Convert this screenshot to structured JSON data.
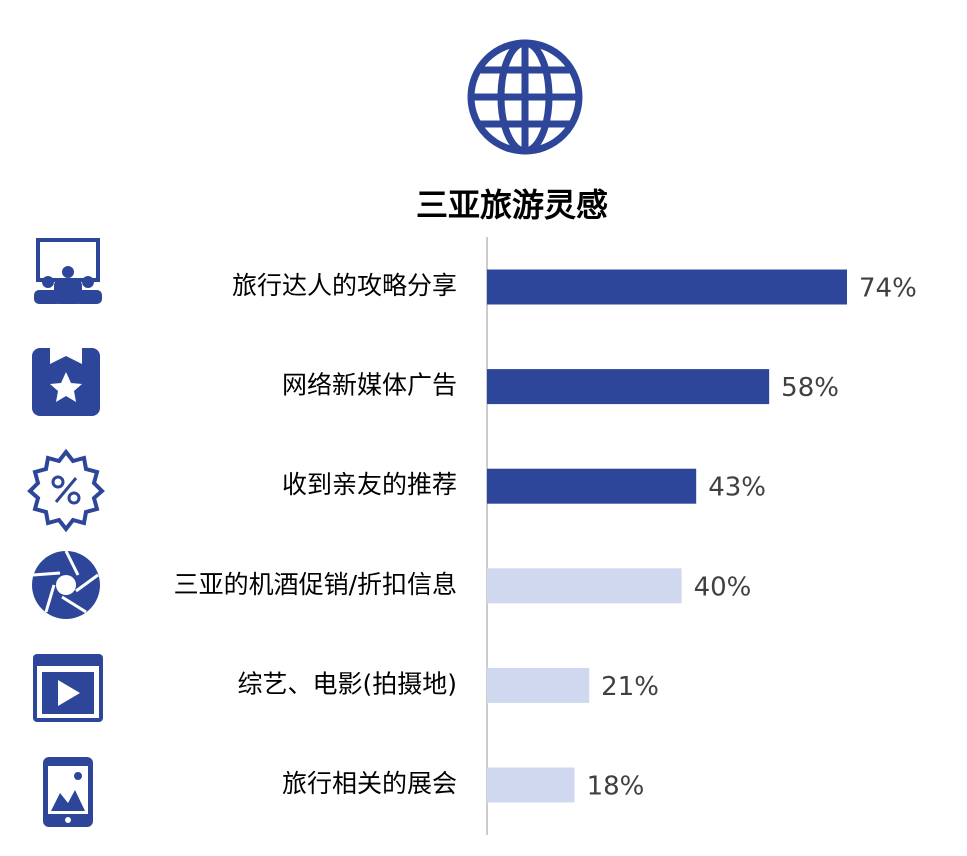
{
  "chart_data": {
    "type": "bar",
    "orientation": "horizontal",
    "title": "三亚旅游灵感",
    "categories": [
      "旅行达人的攻略分享",
      "网络新媒体广告",
      "收到亲友的推荐",
      "三亚的机酒促销/折扣信息",
      "综艺、电影(拍摄地)",
      "旅行相关的展会"
    ],
    "values": [
      74,
      58,
      43,
      40,
      21,
      18
    ],
    "value_labels": [
      "74%",
      "58%",
      "43%",
      "40%",
      "21%",
      "18%"
    ],
    "colors": [
      "#2e4699",
      "#2e4699",
      "#2e4699",
      "#d0d8ef",
      "#d0d8ef",
      "#d0d8ef"
    ]
  }
}
